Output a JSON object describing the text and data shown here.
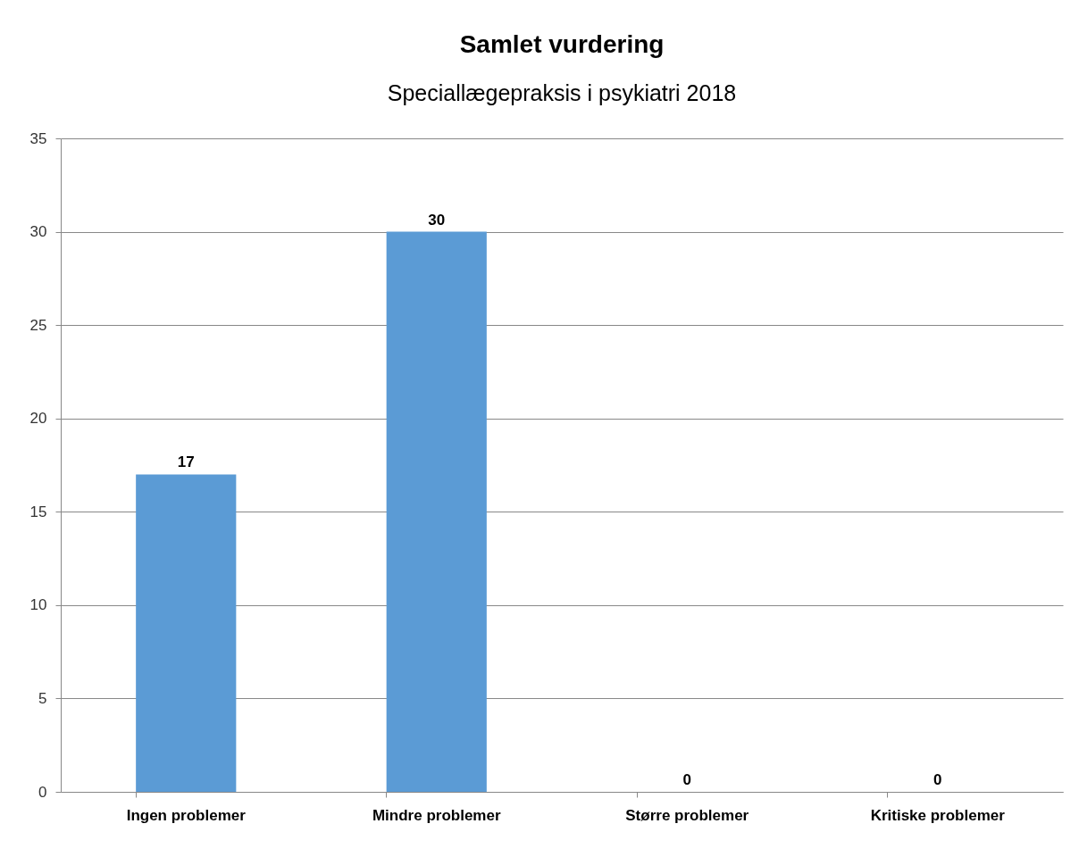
{
  "chart_data": {
    "type": "bar",
    "title": "Samlet vurdering",
    "subtitle": "Speciallægepraksis i psykiatri 2018",
    "categories": [
      "Ingen problemer",
      "Mindre problemer",
      "Større problemer",
      "Kritiske problemer"
    ],
    "values": [
      17,
      30,
      0,
      0
    ],
    "color": "#5b9bd5",
    "ylim": [
      0,
      35
    ],
    "yticks": [
      0,
      5,
      10,
      15,
      20,
      25,
      30,
      35
    ],
    "grid": "y",
    "data_labels": true
  }
}
